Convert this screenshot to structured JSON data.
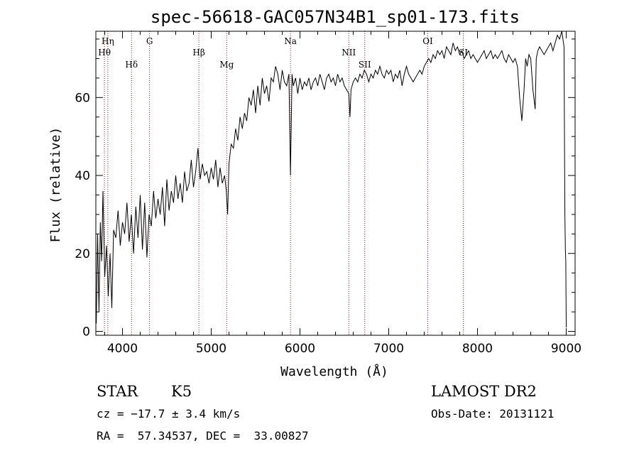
{
  "chart_data": {
    "type": "line",
    "title": "spec-56618-GAC057N34B1_sp01-173.fits",
    "xlabel": "Wavelength (Å)",
    "ylabel": "Flux (relative)",
    "xlim": [
      3700,
      9100
    ],
    "ylim": [
      -1,
      77
    ],
    "xticks": [
      4000,
      5000,
      6000,
      7000,
      8000,
      9000
    ],
    "yticks": [
      0,
      20,
      40,
      60
    ],
    "grid": false,
    "line_color": "#000000",
    "marker_line_color": "#8b1a1a",
    "spectral_lines": [
      {
        "label": "Hη",
        "wavelength": 3835
      },
      {
        "label": "Hθ",
        "wavelength": 3797
      },
      {
        "label": "Hδ",
        "wavelength": 4102
      },
      {
        "label": "G",
        "wavelength": 4305
      },
      {
        "label": "Hβ",
        "wavelength": 4861
      },
      {
        "label": "Mg",
        "wavelength": 5175
      },
      {
        "label": "Na",
        "wavelength": 5893
      },
      {
        "label": "NII",
        "wavelength": 6550
      },
      {
        "label": "SII",
        "wavelength": 6730
      },
      {
        "label": "OI",
        "wavelength": 7440
      },
      {
        "label": "SI",
        "wavelength": 7840
      }
    ],
    "series": [
      {
        "x": [
          3705,
          3720,
          3735,
          3750,
          3765,
          3780,
          3800,
          3820,
          3840,
          3860,
          3880,
          3900,
          3925,
          3950,
          3975,
          4000,
          4025,
          4050,
          4075,
          4100,
          4125,
          4150,
          4175,
          4200,
          4225,
          4250,
          4275,
          4300,
          4325,
          4350,
          4375,
          4400,
          4425,
          4450,
          4475,
          4500,
          4525,
          4550,
          4575,
          4600,
          4625,
          4650,
          4675,
          4700,
          4725,
          4750,
          4775,
          4800,
          4825,
          4850,
          4875,
          4900,
          4925,
          4950,
          4975,
          5000,
          5025,
          5050,
          5075,
          5100,
          5125,
          5150,
          5170,
          5185,
          5200,
          5225,
          5250,
          5275,
          5300,
          5325,
          5350,
          5375,
          5400,
          5425,
          5450,
          5475,
          5500,
          5525,
          5550,
          5575,
          5600,
          5625,
          5650,
          5675,
          5700,
          5725,
          5750,
          5775,
          5800,
          5825,
          5850,
          5875,
          5893,
          5910,
          5925,
          5950,
          5975,
          6000,
          6025,
          6050,
          6075,
          6100,
          6125,
          6150,
          6175,
          6200,
          6225,
          6250,
          6275,
          6300,
          6325,
          6350,
          6375,
          6400,
          6425,
          6450,
          6475,
          6500,
          6525,
          6550,
          6563,
          6575,
          6600,
          6625,
          6650,
          6675,
          6700,
          6725,
          6750,
          6775,
          6800,
          6825,
          6850,
          6875,
          6900,
          6925,
          6950,
          6975,
          7000,
          7025,
          7050,
          7075,
          7100,
          7125,
          7150,
          7175,
          7200,
          7225,
          7250,
          7275,
          7300,
          7325,
          7350,
          7375,
          7400,
          7425,
          7450,
          7475,
          7500,
          7525,
          7550,
          7575,
          7600,
          7625,
          7650,
          7675,
          7700,
          7725,
          7750,
          7775,
          7800,
          7825,
          7850,
          7875,
          7900,
          7925,
          7950,
          7975,
          8000,
          8025,
          8050,
          8075,
          8100,
          8125,
          8150,
          8175,
          8200,
          8225,
          8250,
          8275,
          8300,
          8325,
          8350,
          8375,
          8400,
          8425,
          8450,
          8475,
          8500,
          8525,
          8542,
          8560,
          8580,
          8600,
          8625,
          8650,
          8662,
          8680,
          8700,
          8725,
          8750,
          8775,
          8800,
          8825,
          8850,
          8875,
          8900,
          8925,
          8950,
          8975,
          8985,
          8990,
          8995,
          9000
        ],
        "y": [
          2,
          25,
          5,
          28,
          18,
          36,
          14,
          22,
          9,
          20,
          6,
          26,
          24,
          31,
          22,
          28,
          25,
          33,
          23,
          30,
          20,
          32,
          24,
          35,
          21,
          33,
          19,
          30,
          27,
          36,
          29,
          34,
          30,
          37,
          27,
          39,
          31,
          36,
          33,
          40,
          34,
          38,
          33,
          41,
          36,
          38,
          44,
          37,
          41,
          47,
          39,
          43,
          40,
          41,
          38,
          42,
          39,
          44,
          37,
          42,
          38,
          40,
          36,
          30,
          43,
          48,
          47,
          52,
          49,
          55,
          52,
          56,
          54,
          60,
          58,
          62,
          56,
          63,
          58,
          65,
          61,
          63,
          59,
          65,
          64,
          68,
          66,
          62,
          67,
          64,
          63,
          66,
          40,
          66,
          63,
          65,
          61,
          65,
          62,
          64,
          63,
          65,
          62,
          64,
          65,
          63,
          66,
          64,
          62,
          65,
          66,
          64,
          65,
          63,
          66,
          64,
          65,
          63,
          62,
          61,
          55,
          62,
          64,
          65,
          64,
          66,
          65,
          67,
          66,
          64,
          66,
          65,
          67,
          66,
          68,
          66,
          65,
          67,
          66,
          67,
          64,
          66,
          65,
          67,
          63,
          66,
          68,
          66,
          65,
          64,
          65,
          66,
          67,
          66,
          68,
          69,
          70,
          69,
          71,
          70,
          72,
          71,
          72,
          70,
          73,
          72,
          71,
          74,
          72,
          73,
          71,
          72,
          70,
          71,
          72,
          70,
          71,
          70,
          69,
          70,
          71,
          72,
          70,
          71,
          72,
          70,
          71,
          70,
          71,
          72,
          70,
          69,
          71,
          70,
          69,
          70,
          68,
          60,
          54,
          62,
          70,
          68,
          71,
          70,
          62,
          57,
          70,
          72,
          73,
          72,
          71,
          72,
          73,
          74,
          72,
          74,
          76,
          75,
          77,
          73,
          30,
          21,
          18,
          1
        ]
      }
    ],
    "annotations": {
      "object_type": "STAR",
      "subclass": "K5",
      "cz": "cz = −17.7 ± 3.4 km/s",
      "coords": "RA =  57.34537, DEC =  33.00827",
      "survey": "LAMOST DR2",
      "obs_date": "Obs-Date: 20131121"
    }
  }
}
